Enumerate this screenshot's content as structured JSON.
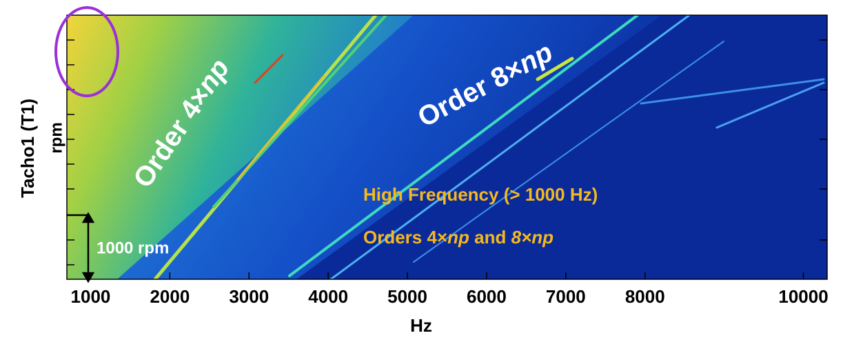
{
  "chart_data": {
    "type": "spectrogram",
    "x_label": "Hz",
    "y_label": "Tacho1 (T1)",
    "y_unit": "rpm",
    "xlim": [
      700,
      10300
    ],
    "xticks": [
      1000,
      2000,
      3000,
      4000,
      5000,
      6000,
      7000,
      8000,
      10000
    ],
    "scale_annotation": "1000 rpm",
    "order_labels": [
      [
        "Order 4×",
        "np"
      ],
      [
        "Order 8×",
        "np"
      ]
    ],
    "notes": [
      [
        "High Frequency (> 1000 Hz)"
      ],
      [
        "Orders 4×",
        "np",
        " and ",
        "8×np"
      ]
    ]
  }
}
